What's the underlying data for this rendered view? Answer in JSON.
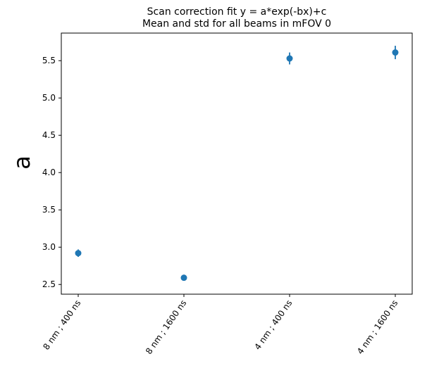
{
  "chart_data": {
    "type": "scatter",
    "title": "Scan correction fit y = a*exp(-bx)+c",
    "subtitle": "Mean and std for all beams in mFOV 0",
    "xlabel": "",
    "ylabel": "a",
    "categories": [
      "8 nm ; 400 ns",
      "8 nm ; 1600 ns",
      "4 nm ; 400 ns",
      "4 nm ; 1600 ns"
    ],
    "series": [
      {
        "values": [
          2.92,
          2.59,
          5.53,
          5.61
        ],
        "std": [
          0.05,
          0.04,
          0.08,
          0.09
        ]
      }
    ],
    "ylim": [
      2.37,
      5.87
    ],
    "yticks": [
      "2.5",
      "3.0",
      "3.5",
      "4.0",
      "4.5",
      "5.0",
      "5.5"
    ],
    "grid": false,
    "marker_color": "#1f77b4"
  }
}
